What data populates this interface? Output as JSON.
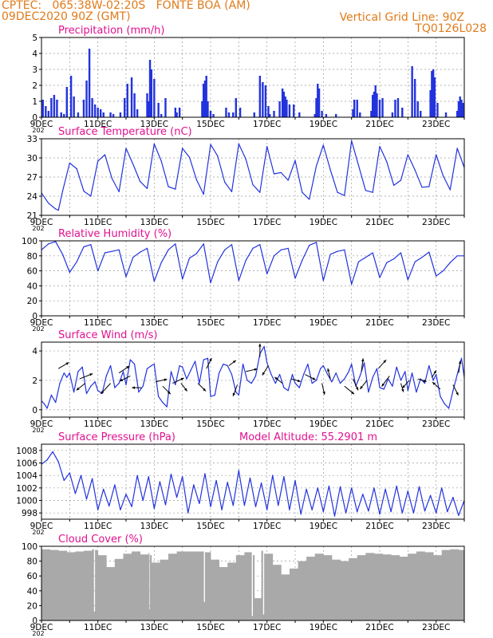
{
  "header": {
    "line1_left": "CPTEC:   065:38W-02:20S   FONTE BOA (AM)",
    "line2_left": "09DEC2020 90Z (GMT)",
    "line1_right": "Vertical Grid Line: 90Z",
    "line2_right": "TQ0126L028"
  },
  "colors": {
    "header": "#e07b1a",
    "panel_title": "#e0118f",
    "series_line": "#2233dd",
    "precip_bars": "#2233dd",
    "cloud_fill": "#a9a9a9",
    "wind_arrows": "#000000"
  },
  "x_axis": {
    "tick_labels": [
      "9DEC",
      "11DEC",
      "13DEC",
      "15DEC",
      "17DEC",
      "19DEC",
      "21DEC",
      "23DEC"
    ],
    "year_fragment": "202",
    "range_days": [
      9,
      24
    ]
  },
  "chart_data": [
    {
      "id": "precip",
      "type": "bar",
      "title": "Precipitation (mm/h)",
      "ylim": [
        0,
        5
      ],
      "yticks": [
        0,
        1,
        2,
        3,
        4,
        5
      ],
      "grid": true,
      "x": [
        9.05,
        9.15,
        9.25,
        9.35,
        9.45,
        9.55,
        9.7,
        9.8,
        9.9,
        10.05,
        10.15,
        10.3,
        10.5,
        10.6,
        10.7,
        10.8,
        10.9,
        11.0,
        11.1,
        11.2,
        11.45,
        11.55,
        11.8,
        11.95,
        12.05,
        12.2,
        12.3,
        12.4,
        12.75,
        12.8,
        12.85,
        12.9,
        13.0,
        13.15,
        13.25,
        13.4,
        13.75,
        13.8,
        13.9,
        14.7,
        14.75,
        14.8,
        14.85,
        14.9,
        15.0,
        15.1,
        15.55,
        15.65,
        15.8,
        15.9,
        16.05,
        16.55,
        16.75,
        16.85,
        16.95,
        17.05,
        17.1,
        17.25,
        17.45,
        17.55,
        17.6,
        17.65,
        17.7,
        17.8,
        17.95,
        18.15,
        18.7,
        18.75,
        18.8,
        18.85,
        18.95,
        19.1,
        19.45,
        20.05,
        20.1,
        20.2,
        20.3,
        20.7,
        20.75,
        20.8,
        20.85,
        20.9,
        21.0,
        21.1,
        21.45,
        21.55,
        21.65,
        21.8,
        22.15,
        22.25,
        22.35,
        22.45,
        22.8,
        22.85,
        22.9,
        22.95,
        23.05,
        23.35,
        23.75,
        23.8,
        23.85,
        23.9,
        23.95
      ],
      "values": [
        1.1,
        0.7,
        0.4,
        1.2,
        1.4,
        1.1,
        0.3,
        0.2,
        1.9,
        2.6,
        1.3,
        0.3,
        1.1,
        2.3,
        4.3,
        1.2,
        0.8,
        0.6,
        0.5,
        0.3,
        0.3,
        0.2,
        0.3,
        1.2,
        2.1,
        2.5,
        1.5,
        0.5,
        1.5,
        1.0,
        3.6,
        3.0,
        2.4,
        0.9,
        0.2,
        1.2,
        0.6,
        0.3,
        0.6,
        1.0,
        2.1,
        2.3,
        2.6,
        1.0,
        0.4,
        0.2,
        0.6,
        0.3,
        0.3,
        1.2,
        0.6,
        0.3,
        2.6,
        2.2,
        2.0,
        0.7,
        0.2,
        0.4,
        1.0,
        1.8,
        1.6,
        1.3,
        1.1,
        0.8,
        0.8,
        0.3,
        0.2,
        1.2,
        2.1,
        1.8,
        0.4,
        0.2,
        0.2,
        0.5,
        1.1,
        1.1,
        0.3,
        0.4,
        1.4,
        1.6,
        2.0,
        1.5,
        1.1,
        1.2,
        0.3,
        1.1,
        1.2,
        0.6,
        3.2,
        2.4,
        1.0,
        0.4,
        1.7,
        2.9,
        3.0,
        2.5,
        0.9,
        0.3,
        0.4,
        1.0,
        1.3,
        1.1,
        0.9
      ]
    },
    {
      "id": "temp",
      "type": "line",
      "title": "Surface Temperature (nC)",
      "ylim": [
        21,
        33
      ],
      "yticks": [
        21,
        24,
        27,
        30,
        33
      ],
      "grid": true,
      "x": [
        9.0,
        9.25,
        9.5,
        9.6,
        9.75,
        10.0,
        10.25,
        10.5,
        10.75,
        11.0,
        11.25,
        11.5,
        11.75,
        12.0,
        12.25,
        12.5,
        12.75,
        13.0,
        13.25,
        13.5,
        13.75,
        14.0,
        14.25,
        14.5,
        14.75,
        15.0,
        15.25,
        15.5,
        15.75,
        16.0,
        16.25,
        16.5,
        16.75,
        17.0,
        17.25,
        17.5,
        17.75,
        18.0,
        18.25,
        18.5,
        18.75,
        19.0,
        19.25,
        19.5,
        19.75,
        20.0,
        20.25,
        20.5,
        20.75,
        21.0,
        21.25,
        21.5,
        21.75,
        22.0,
        22.25,
        22.5,
        22.75,
        23.0,
        23.25,
        23.5,
        23.75,
        24.0
      ],
      "values": [
        24.5,
        22.9,
        22.0,
        21.8,
        24.8,
        29.2,
        28.3,
        24.8,
        24.0,
        29.5,
        30.5,
        26.8,
        24.7,
        31.5,
        29.0,
        26.3,
        25.2,
        32.2,
        29.5,
        25.5,
        25.1,
        31.5,
        30.1,
        26.6,
        24.3,
        32.1,
        30.3,
        26.2,
        24.7,
        32.2,
        29.8,
        25.8,
        24.6,
        31.8,
        27.5,
        27.7,
        26.5,
        29.6,
        24.6,
        23.5,
        28.7,
        32.0,
        28.1,
        24.6,
        24.1,
        32.7,
        28.8,
        24.9,
        24.6,
        31.8,
        29.4,
        25.7,
        26.5,
        30.5,
        28.1,
        25.4,
        25.5,
        30.5,
        27.2,
        25.0,
        31.5,
        28.5
      ]
    },
    {
      "id": "rh",
      "type": "line",
      "title": "Relative Humidity (%)",
      "ylim": [
        0,
        100
      ],
      "yticks": [
        0,
        20,
        40,
        60,
        80,
        100
      ],
      "grid": true,
      "x": [
        9.0,
        9.25,
        9.5,
        9.75,
        10.0,
        10.25,
        10.5,
        10.75,
        11.0,
        11.25,
        11.5,
        11.75,
        12.0,
        12.25,
        12.5,
        12.75,
        13.0,
        13.25,
        13.5,
        13.75,
        14.0,
        14.25,
        14.5,
        14.75,
        15.0,
        15.25,
        15.5,
        15.75,
        16.0,
        16.25,
        16.5,
        16.75,
        17.0,
        17.25,
        17.5,
        17.75,
        18.0,
        18.25,
        18.5,
        18.75,
        19.0,
        19.25,
        19.5,
        19.75,
        20.0,
        20.25,
        20.5,
        20.75,
        21.0,
        21.25,
        21.5,
        21.75,
        22.0,
        22.25,
        22.5,
        22.75,
        23.0,
        23.25,
        23.5,
        23.75,
        24.0
      ],
      "values": [
        88,
        96,
        99,
        82,
        58,
        72,
        92,
        95,
        60,
        84,
        86,
        88,
        52,
        78,
        85,
        90,
        46,
        71,
        88,
        96,
        49,
        77,
        83,
        96,
        44,
        72,
        88,
        95,
        47,
        74,
        90,
        95,
        56,
        80,
        88,
        90,
        50,
        74,
        94,
        98,
        47,
        82,
        86,
        88,
        42,
        72,
        78,
        84,
        51,
        71,
        76,
        84,
        48,
        72,
        78,
        85,
        53,
        60,
        71,
        80,
        80
      ]
    },
    {
      "id": "wind",
      "type": "line",
      "title": "Surface Wind (m/s)",
      "ylim": [
        -0.5,
        4.6
      ],
      "yticks": [
        0,
        2,
        4
      ],
      "grid": true,
      "x": [
        9.0,
        9.1,
        9.2,
        9.35,
        9.5,
        9.65,
        9.8,
        9.9,
        10.0,
        10.15,
        10.3,
        10.45,
        10.6,
        10.75,
        10.9,
        11.0,
        11.15,
        11.3,
        11.45,
        11.6,
        11.75,
        11.9,
        12.0,
        12.15,
        12.3,
        12.45,
        12.6,
        12.75,
        12.9,
        13.0,
        13.15,
        13.3,
        13.45,
        13.6,
        13.75,
        13.9,
        14.0,
        14.15,
        14.3,
        14.45,
        14.6,
        14.75,
        14.9,
        15.0,
        15.15,
        15.3,
        15.45,
        15.6,
        15.75,
        15.9,
        16.0,
        16.15,
        16.3,
        16.45,
        16.6,
        16.75,
        16.9,
        17.0,
        17.15,
        17.3,
        17.45,
        17.6,
        17.75,
        17.9,
        18.0,
        18.15,
        18.3,
        18.45,
        18.6,
        18.75,
        18.9,
        19.0,
        19.15,
        19.3,
        19.45,
        19.6,
        19.75,
        19.9,
        20.0,
        20.15,
        20.3,
        20.45,
        20.6,
        20.75,
        20.9,
        21.0,
        21.15,
        21.3,
        21.45,
        21.6,
        21.75,
        21.9,
        22.0,
        22.15,
        22.3,
        22.45,
        22.6,
        22.75,
        22.9,
        23.0,
        23.15,
        23.3,
        23.45,
        23.6,
        23.75,
        23.9,
        24.0
      ],
      "values": [
        0.6,
        0.4,
        0.1,
        1.0,
        0.5,
        1.8,
        2.5,
        2.2,
        2.5,
        1.2,
        2.6,
        2.9,
        1.1,
        1.6,
        1.9,
        1.3,
        1.1,
        2.3,
        3.0,
        1.5,
        1.8,
        2.6,
        1.7,
        3.4,
        3.1,
        1.2,
        1.6,
        2.8,
        3.0,
        3.1,
        0.9,
        0.5,
        0.2,
        2.6,
        1.7,
        3.0,
        2.9,
        2.1,
        2.7,
        3.3,
        1.8,
        3.4,
        3.5,
        0.9,
        1.0,
        2.5,
        3.1,
        3.0,
        2.4,
        1.2,
        1.0,
        3.1,
        2.0,
        1.8,
        2.3,
        3.8,
        4.3,
        3.2,
        2.4,
        1.8,
        2.4,
        1.5,
        1.3,
        2.4,
        1.8,
        1.5,
        2.4,
        3.1,
        1.8,
        2.0,
        2.8,
        3.0,
        2.4,
        1.9,
        2.5,
        1.8,
        2.1,
        2.6,
        3.1,
        1.6,
        2.3,
        3.2,
        1.2,
        2.2,
        2.8,
        1.5,
        1.4,
        2.1,
        1.6,
        2.9,
        2.0,
        2.6,
        1.3,
        2.5,
        1.2,
        2.1,
        1.8,
        3.0,
        2.0,
        2.4,
        0.9,
        0.4,
        0.1,
        1.3,
        2.4,
        3.5,
        2.2
      ]
    },
    {
      "id": "pressure",
      "type": "line",
      "title": "Surface Pressure (hPa)",
      "annotation": "Model Altitude: 55.2901 m",
      "ylim": [
        997,
        1009
      ],
      "yticks": [
        998,
        1000,
        1002,
        1004,
        1006,
        1008
      ],
      "grid": true,
      "x": [
        9.0,
        9.2,
        9.4,
        9.6,
        9.8,
        10.0,
        10.2,
        10.4,
        10.6,
        10.8,
        11.0,
        11.2,
        11.4,
        11.6,
        11.8,
        12.0,
        12.2,
        12.4,
        12.6,
        12.8,
        13.0,
        13.2,
        13.4,
        13.6,
        13.8,
        14.0,
        14.2,
        14.4,
        14.6,
        14.8,
        15.0,
        15.2,
        15.4,
        15.6,
        15.8,
        16.0,
        16.2,
        16.4,
        16.6,
        16.8,
        17.0,
        17.2,
        17.4,
        17.6,
        17.8,
        18.0,
        18.2,
        18.4,
        18.6,
        18.8,
        19.0,
        19.2,
        19.4,
        19.6,
        19.8,
        20.0,
        20.2,
        20.4,
        20.6,
        20.8,
        21.0,
        21.2,
        21.4,
        21.6,
        21.8,
        22.0,
        22.2,
        22.4,
        22.6,
        22.8,
        23.0,
        23.2,
        23.4,
        23.6,
        23.8,
        24.0
      ],
      "values": [
        1005.8,
        1006.5,
        1007.8,
        1006.2,
        1003.2,
        1004.4,
        1001.1,
        1004.0,
        1000.2,
        1003.5,
        998.5,
        1001.8,
        999.1,
        1002.5,
        998.5,
        1001.0,
        999.0,
        1004.0,
        1000.0,
        1003.8,
        998.7,
        1003.0,
        999.3,
        1004.2,
        1000.5,
        1003.8,
        998.0,
        1002.5,
        999.5,
        1004.3,
        999.0,
        1003.2,
        998.5,
        1002.9,
        999.2,
        1004.8,
        999.2,
        1003.6,
        999.0,
        1002.8,
        998.5,
        1004.0,
        999.2,
        1003.8,
        998.5,
        1003.2,
        997.8,
        1001.8,
        998.5,
        1002.0,
        998.2,
        1002.3,
        997.5,
        1002.2,
        998.0,
        1002.0,
        998.2,
        1001.0,
        998.3,
        1002.0,
        997.8,
        1001.8,
        998.2,
        1002.3,
        998.0,
        1001.5,
        998.0,
        1002.2,
        998.3,
        1000.8,
        998.0,
        1002.0,
        998.2,
        1000.5,
        997.6,
        1000.0
      ]
    },
    {
      "id": "cloud",
      "type": "area",
      "title": "Cloud Cover (%)",
      "ylim": [
        0,
        100
      ],
      "yticks": [
        0,
        20,
        40,
        60,
        80,
        100
      ],
      "grid": true,
      "x": [
        9.0,
        9.3,
        9.6,
        9.9,
        10.2,
        10.5,
        10.8,
        10.85,
        10.9,
        11.0,
        11.3,
        11.6,
        11.9,
        12.2,
        12.5,
        12.8,
        12.82,
        12.85,
        12.9,
        13.2,
        13.5,
        13.8,
        14.1,
        14.4,
        14.7,
        14.75,
        14.8,
        15.0,
        15.3,
        15.6,
        15.9,
        16.2,
        16.45,
        16.5,
        16.55,
        16.8,
        16.85,
        16.9,
        17.2,
        17.5,
        17.8,
        18.1,
        18.4,
        18.7,
        19.0,
        19.3,
        19.6,
        19.9,
        20.2,
        20.5,
        20.8,
        21.1,
        21.4,
        21.7,
        22.0,
        22.3,
        22.6,
        22.9,
        23.2,
        23.5,
        23.8,
        24.0
      ],
      "values": [
        96,
        95,
        94,
        92,
        93,
        94,
        96,
        12,
        95,
        88,
        72,
        83,
        90,
        93,
        89,
        91,
        15,
        88,
        78,
        82,
        90,
        93,
        93,
        93,
        93,
        25,
        92,
        82,
        72,
        78,
        88,
        92,
        6,
        88,
        30,
        94,
        8,
        90,
        75,
        62,
        70,
        80,
        86,
        90,
        88,
        82,
        80,
        84,
        88,
        91,
        90,
        89,
        88,
        86,
        90,
        93,
        92,
        88,
        95,
        96,
        95,
        96
      ]
    }
  ],
  "wind_vectors": {
    "x": [
      9.6,
      10.35,
      10.55,
      11.45,
      11.75,
      12.15,
      12.55,
      13.05,
      13.3,
      13.65,
      13.95,
      14.55,
      14.85,
      15.65,
      15.95,
      16.25,
      16.75,
      17.05,
      17.55,
      17.85,
      18.35,
      18.95,
      19.25,
      19.75,
      20.05,
      20.35,
      20.55,
      20.95,
      21.35,
      21.75,
      22.05,
      22.35,
      22.85,
      23.15,
      23.6,
      23.8
    ],
    "y": [
      2.8,
      2.1,
      1.8,
      1.8,
      2.5,
      2.3,
      1.5,
      1.9,
      1.6,
      1.8,
      1.8,
      1.8,
      2.8,
      3.0,
      1.7,
      2.6,
      3.6,
      3.0,
      1.8,
      2.1,
      2.4,
      1.8,
      2.1,
      1.6,
      2.1,
      2.6,
      2.0,
      2.8,
      2.3,
      1.8,
      2.0,
      2.1,
      2.2,
      1.4,
      1.7,
      2.5
    ],
    "u": [
      1.2,
      1.5,
      -1.0,
      -1.1,
      1.2,
      -1.2,
      -1.1,
      1.3,
      0.9,
      1.3,
      0.7,
      0.9,
      0.6,
      0.8,
      -0.5,
      1.3,
      0.0,
      -0.7,
      -0.9,
      1.1,
      1.2,
      0.3,
      -0.3,
      1.1,
      0.6,
      0.2,
      -0.8,
      0.9,
      -0.9,
      0.3,
      -0.8,
      1.0,
      0.5,
      -0.9,
      0.6,
      0.2
    ],
    "v": [
      0.7,
      0.6,
      -0.8,
      -1.2,
      0.8,
      -0.6,
      0.0,
      0.3,
      -0.9,
      0.6,
      -0.9,
      -0.9,
      1.2,
      0.6,
      -1.3,
      0.3,
      1.5,
      -1.1,
      0.7,
      -0.3,
      -0.6,
      -1.3,
      1.2,
      -0.9,
      -1.3,
      1.5,
      -1.0,
      1.0,
      -1.2,
      -1.0,
      -0.9,
      -0.3,
      0.8,
      0.8,
      -1.2,
      1.4
    ]
  }
}
